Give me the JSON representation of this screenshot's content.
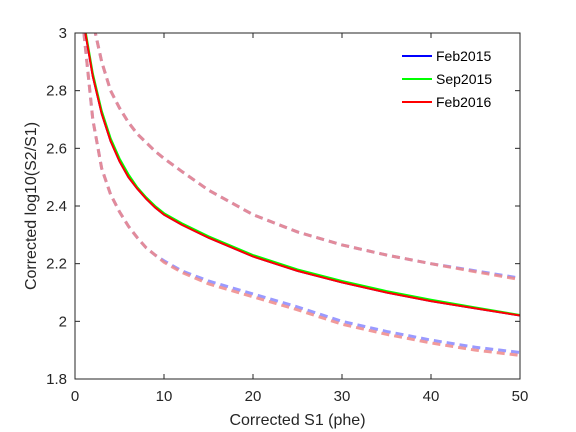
{
  "chart_data": {
    "type": "line",
    "title": "",
    "xlabel": "Corrected S1 (phe)",
    "ylabel": "Corrected log10(S2/S1)",
    "xlim": [
      0,
      50
    ],
    "ylim": [
      1.8,
      3
    ],
    "xticks": [
      0,
      10,
      20,
      30,
      40,
      50
    ],
    "xtick_labels": [
      "0",
      "10",
      "20",
      "30",
      "40",
      "50"
    ],
    "yticks": [
      1.8,
      2,
      2.2,
      2.4,
      2.6,
      2.8,
      3
    ],
    "ytick_labels": [
      "1.8",
      "2",
      "2.2",
      "2.4",
      "2.6",
      "2.8",
      "3"
    ],
    "grid": false,
    "legend_position": "top-right",
    "x": [
      1,
      2,
      3,
      4,
      5,
      6,
      7,
      8,
      9,
      10,
      12,
      15,
      20,
      25,
      30,
      35,
      40,
      45,
      50
    ],
    "series": [
      {
        "name": "Feb2015",
        "color": "#0000ff",
        "values": [
          3.03,
          2.85,
          2.72,
          2.625,
          2.555,
          2.5,
          2.46,
          2.425,
          2.395,
          2.37,
          2.335,
          2.29,
          2.225,
          2.175,
          2.135,
          2.1,
          2.07,
          2.045,
          2.02
        ]
      },
      {
        "name": "Sep2015",
        "color": "#00ff00",
        "values": [
          3.04,
          2.86,
          2.73,
          2.635,
          2.565,
          2.51,
          2.465,
          2.43,
          2.4,
          2.375,
          2.34,
          2.295,
          2.23,
          2.18,
          2.14,
          2.105,
          2.075,
          2.048,
          2.022
        ]
      },
      {
        "name": "Feb2016",
        "color": "#ff0000",
        "values": [
          3.03,
          2.85,
          2.72,
          2.625,
          2.555,
          2.5,
          2.46,
          2.425,
          2.395,
          2.37,
          2.335,
          2.29,
          2.225,
          2.175,
          2.135,
          2.1,
          2.07,
          2.045,
          2.02
        ]
      }
    ],
    "bands": [
      {
        "color": "#8888ff",
        "upper": [
          3.1,
          3.04,
          2.9,
          2.8,
          2.74,
          2.69,
          2.65,
          2.62,
          2.59,
          2.565,
          2.52,
          2.455,
          2.37,
          2.31,
          2.265,
          2.23,
          2.2,
          2.175,
          2.15
        ],
        "lower": [
          3.0,
          2.7,
          2.53,
          2.44,
          2.38,
          2.33,
          2.29,
          2.255,
          2.23,
          2.21,
          2.175,
          2.14,
          2.095,
          2.05,
          2.0,
          1.965,
          1.935,
          1.91,
          1.892
        ]
      },
      {
        "color": "#ee8888",
        "upper": [
          3.1,
          3.04,
          2.9,
          2.8,
          2.74,
          2.69,
          2.65,
          2.62,
          2.59,
          2.565,
          2.52,
          2.455,
          2.37,
          2.31,
          2.265,
          2.23,
          2.2,
          2.172,
          2.145
        ],
        "lower": [
          3.0,
          2.7,
          2.53,
          2.44,
          2.38,
          2.33,
          2.29,
          2.255,
          2.23,
          2.205,
          2.17,
          2.13,
          2.085,
          2.04,
          1.99,
          1.955,
          1.925,
          1.9,
          1.882
        ]
      }
    ]
  }
}
